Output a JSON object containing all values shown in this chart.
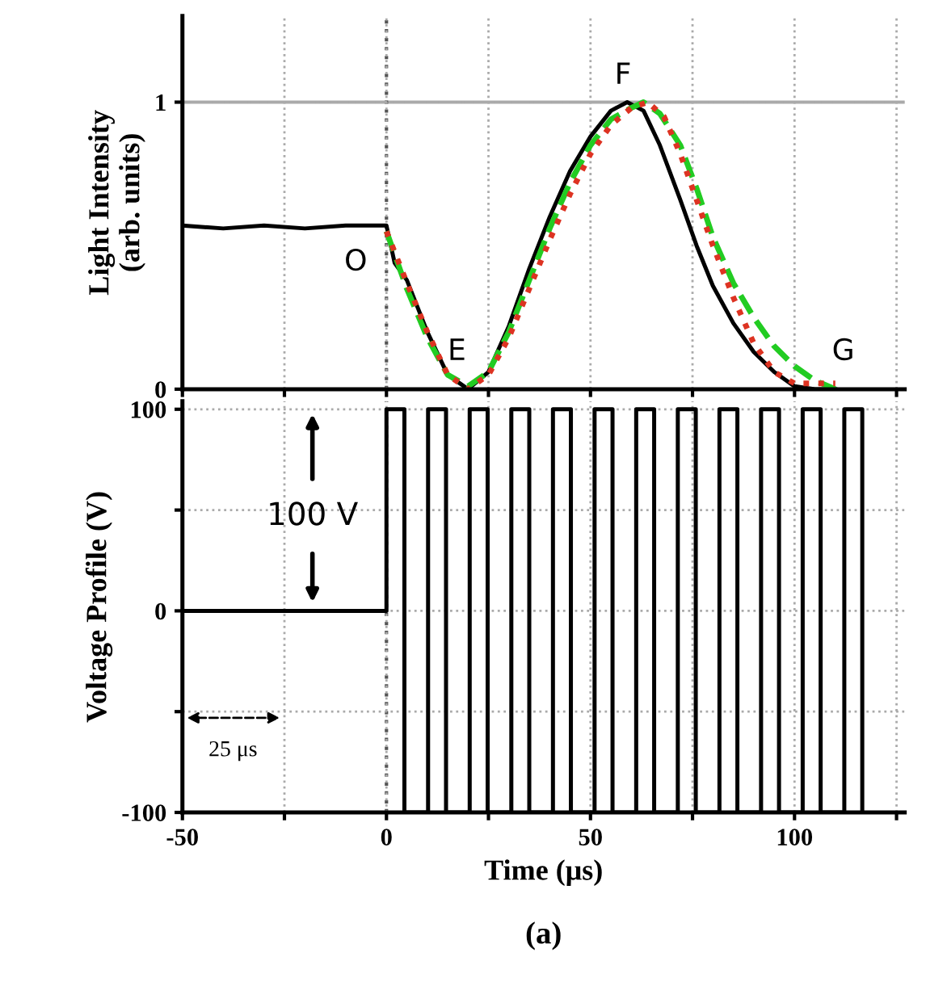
{
  "chart_data": [
    {
      "type": "line",
      "ylabel": "Light Intensity\n(arb. units)",
      "xlim": [
        -50,
        127
      ],
      "ylim": [
        0,
        1.3
      ],
      "xticks": [
        -50,
        {
          "value": -25,
          "label": null
        },
        0,
        {
          "value": 25,
          "label": null
        },
        50,
        {
          "value": 75,
          "label": null
        },
        100,
        {
          "value": 125,
          "label": null
        }
      ],
      "yticks": [
        0,
        1
      ],
      "tick_labels": "y",
      "grid": true,
      "ref_lines": [
        {
          "axis": "y",
          "value": 1,
          "color": "#aaaaaa",
          "line_style": "solid"
        },
        {
          "axis": "x",
          "value": 0,
          "color": "#555555",
          "line_style": "dotted"
        }
      ],
      "series": [
        {
          "color": "#000000",
          "line_style": "solid",
          "x": [
            -50,
            -40,
            -30,
            -20,
            -10,
            0,
            2,
            5,
            10,
            15,
            20,
            25,
            30,
            35,
            40,
            45,
            50,
            55,
            59,
            63,
            67,
            72,
            76,
            80,
            85,
            90,
            95,
            100,
            105,
            110
          ],
          "values": [
            0.57,
            0.56,
            0.57,
            0.56,
            0.57,
            0.57,
            0.44,
            0.38,
            0.2,
            0.05,
            0.0,
            0.06,
            0.22,
            0.42,
            0.6,
            0.76,
            0.88,
            0.97,
            1.0,
            0.97,
            0.85,
            0.66,
            0.5,
            0.36,
            0.23,
            0.13,
            0.06,
            0.01,
            0.0,
            0.0
          ]
        },
        {
          "color": "#22cc22",
          "line_style": "dashed",
          "x": [
            0,
            5,
            10,
            15,
            20,
            25,
            30,
            35,
            40,
            45,
            50,
            55,
            60,
            63,
            67,
            72,
            76,
            80,
            85,
            90,
            95,
            100,
            105,
            110
          ],
          "values": [
            0.55,
            0.35,
            0.18,
            0.05,
            0.01,
            0.06,
            0.2,
            0.38,
            0.56,
            0.72,
            0.85,
            0.94,
            0.98,
            1.0,
            0.96,
            0.85,
            0.7,
            0.53,
            0.37,
            0.25,
            0.15,
            0.08,
            0.03,
            0.0
          ]
        },
        {
          "color": "#dd3322",
          "line_style": "dotted",
          "x": [
            0,
            5,
            10,
            15,
            20,
            25,
            30,
            35,
            40,
            45,
            50,
            55,
            60,
            64,
            68,
            72,
            76,
            80,
            85,
            90,
            95,
            100,
            105,
            110
          ],
          "values": [
            0.55,
            0.37,
            0.2,
            0.05,
            0.0,
            0.05,
            0.18,
            0.35,
            0.52,
            0.68,
            0.82,
            0.92,
            0.98,
            1.0,
            0.95,
            0.82,
            0.66,
            0.5,
            0.32,
            0.16,
            0.06,
            0.02,
            0.02,
            0.02
          ]
        }
      ],
      "annotations": [
        "O",
        "E",
        "F",
        "G"
      ]
    },
    {
      "type": "line",
      "xlabel": "Time (μs)",
      "ylabel": "Voltage Profile (V)",
      "xlim": [
        -50,
        127
      ],
      "ylim": [
        -100,
        104
      ],
      "xticks": [
        -50,
        {
          "value": -25,
          "label": null
        },
        0,
        {
          "value": 25,
          "label": null
        },
        50,
        {
          "value": 75,
          "label": null
        },
        100,
        {
          "value": 125,
          "label": null
        }
      ],
      "yticks": [
        -100,
        {
          "value": -50,
          "label": null
        },
        0,
        {
          "value": 50,
          "label": null
        },
        100
      ],
      "grid": true,
      "ref_lines": [
        {
          "axis": "x",
          "value": 0,
          "color": "#555555",
          "line_style": "dotted"
        }
      ],
      "series": [
        {
          "color": "#000000",
          "line_style": "solid",
          "x": [
            -50,
            0,
            0,
            4.4,
            4.4,
            10.2,
            10.2,
            14.6,
            14.6,
            20.4,
            20.4,
            24.8,
            24.8,
            30.6,
            30.6,
            35.0,
            35.0,
            40.8,
            40.8,
            45.2,
            45.2,
            51.0,
            51.0,
            55.4,
            55.4,
            61.2,
            61.2,
            65.6,
            65.6,
            71.4,
            71.4,
            75.8,
            75.8,
            81.6,
            81.6,
            86.0,
            86.0,
            91.8,
            91.8,
            96.2,
            96.2,
            102.0,
            102.0,
            106.4,
            106.4,
            112.2,
            112.2,
            116.6,
            116.6
          ],
          "values": [
            0,
            0,
            100,
            100,
            -100,
            -100,
            100,
            100,
            -100,
            -100,
            100,
            100,
            -100,
            -100,
            100,
            100,
            -100,
            -100,
            100,
            100,
            -100,
            -100,
            100,
            100,
            -100,
            -100,
            100,
            100,
            -100,
            -100,
            100,
            100,
            -100,
            -100,
            100,
            100,
            -100,
            -100,
            100,
            100,
            -100,
            -100,
            100,
            100,
            -100,
            -100,
            100,
            100,
            -100
          ]
        }
      ],
      "annotations": [
        "100 V",
        "25 μs",
        "(a)"
      ]
    }
  ]
}
